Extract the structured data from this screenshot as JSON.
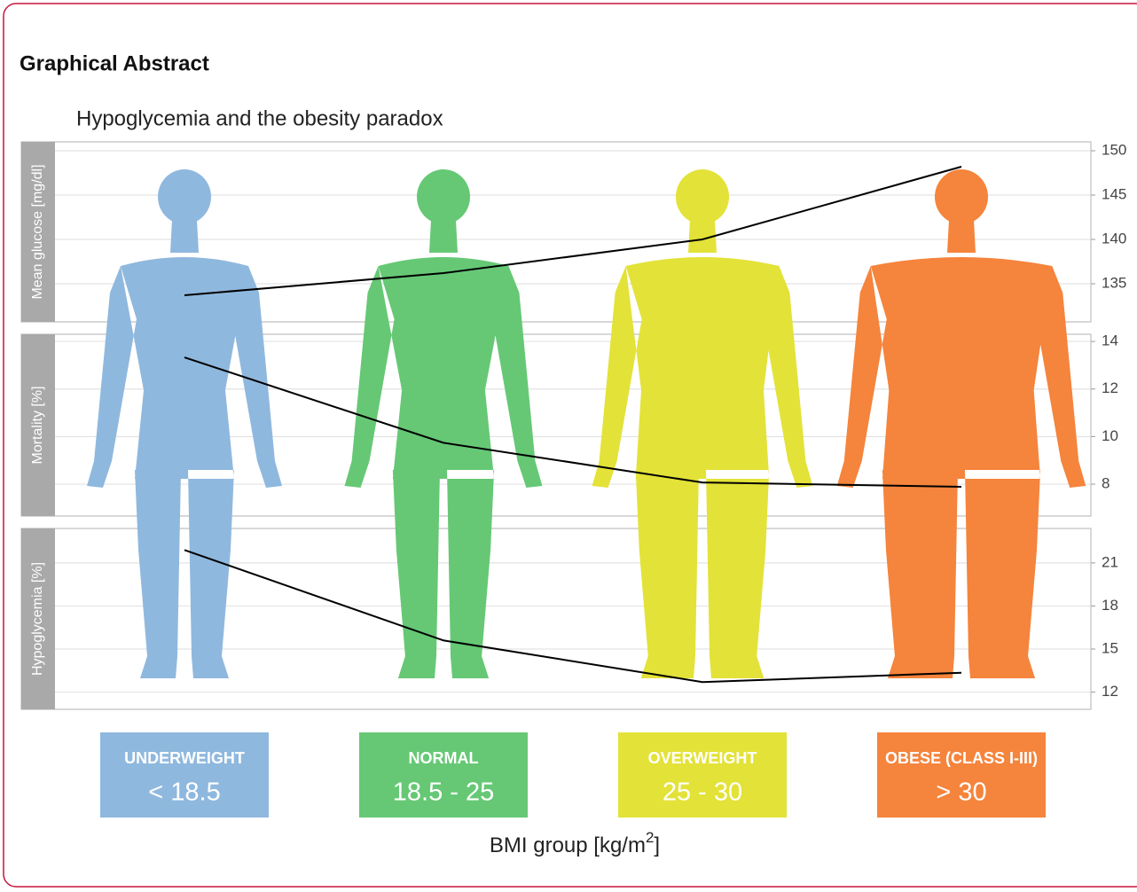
{
  "header": {
    "title": "Graphical Abstract"
  },
  "figure": {
    "title": "Hypoglycemia and the obesity paradox",
    "xlabel": {
      "text": "BMI group [kg/m",
      "superscript": "2",
      "suffix": "]"
    },
    "groups": [
      {
        "name": "UNDERWEIGHT",
        "range": "< 18.5",
        "color": "#8fb8de"
      },
      {
        "name": "NORMAL",
        "range": "18.5 - 25",
        "color": "#66c875"
      },
      {
        "name": "OVERWEIGHT",
        "range": "25 - 30",
        "color": "#e3e238"
      },
      {
        "name": "OBESE (CLASS I-III)",
        "range": "> 30",
        "color": "#f5843c"
      }
    ]
  },
  "chart_data": [
    {
      "type": "line",
      "ylabel": "Mean glucose [mg/dl]",
      "values": [
        133.7,
        136.2,
        140,
        148.2
      ],
      "ylim": [
        130.7,
        151
      ],
      "yticks": [
        135,
        140,
        145,
        150
      ],
      "color": "#000000",
      "grid": true
    },
    {
      "type": "line",
      "ylabel": "Mortality [%]",
      "values": [
        13.33,
        9.74,
        8.07,
        7.89
      ],
      "ylim": [
        6.66,
        14.3
      ],
      "yticks": [
        8,
        10,
        12,
        14
      ],
      "color": "#000000",
      "grid": true
    },
    {
      "type": "line",
      "ylabel": "Hypoglycemia [%]",
      "values": [
        21.9,
        15.6,
        12.7,
        13.35
      ],
      "ylim": [
        10.8,
        23.4
      ],
      "yticks": [
        12,
        15,
        18,
        21
      ],
      "color": "#000000",
      "grid": true
    }
  ]
}
